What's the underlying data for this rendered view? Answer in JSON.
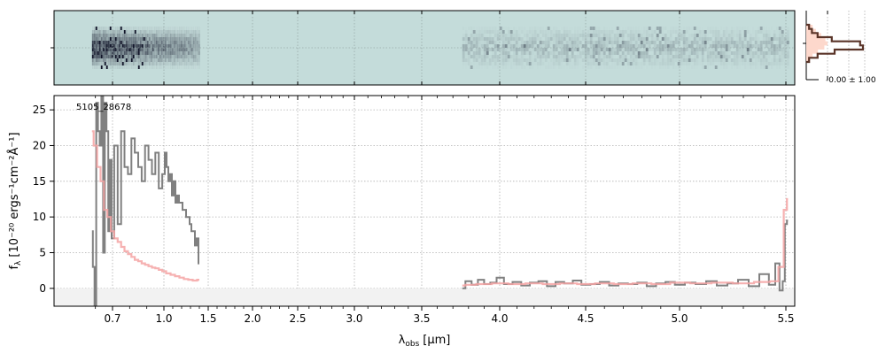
{
  "object_label": "5105_28678",
  "profile_label": "-0.00 ± 1.00",
  "colors": {
    "data": "#808080",
    "model": "#f4a3a3",
    "model_dark": "#a85050",
    "spec2d_bg": "#c4dcda",
    "profile_fill": "#fdd8cc",
    "profile_line": "#5a3428"
  },
  "chart_data": [
    {
      "type": "line",
      "panel": "spectrum-1d",
      "xlabel_symbol": "λ",
      "xlabel_sub": "obs",
      "xlabel_unit": "[μm]",
      "ylabel_text": "f",
      "ylabel_sub": "λ",
      "ylabel_unit": "[10⁻²⁰ ergs⁻¹cm⁻²Å⁻¹]",
      "ylim": [
        -2.5,
        27
      ],
      "yticks": [
        0,
        5,
        10,
        15,
        20,
        25
      ],
      "xticks": [
        0.7,
        1.0,
        1.5,
        2.0,
        2.5,
        3.0,
        3.5,
        4.0,
        4.5,
        5.0,
        5.5
      ],
      "x_tick_labels": [
        "0.7",
        "1.0",
        "1.5",
        "2.0",
        "2.5",
        "3.0",
        "3.5",
        "4.0",
        "4.5",
        "5.0",
        "5.5"
      ],
      "grid": true,
      "series": [
        {
          "role": "data",
          "x": [
            0.58,
            0.59,
            0.6,
            0.61,
            0.62,
            0.63,
            0.64,
            0.65,
            0.66,
            0.67,
            0.68,
            0.69,
            0.7,
            0.72,
            0.74,
            0.76,
            0.78,
            0.8,
            0.82,
            0.84,
            0.86,
            0.88,
            0.9,
            0.92,
            0.94,
            0.96,
            0.98,
            1.0,
            1.02,
            1.04,
            1.06,
            1.08,
            1.1,
            1.12,
            1.14,
            1.16,
            1.18,
            1.2,
            1.22,
            1.24,
            1.26,
            1.28,
            1.3,
            1.32,
            1.34,
            1.36,
            1.38,
            1.4
          ],
          "y": [
            8,
            3,
            -2.5,
            26,
            22,
            20,
            27,
            5,
            26,
            22,
            8,
            18,
            7,
            20,
            9,
            22,
            17,
            16,
            21,
            19,
            17,
            15,
            20,
            18,
            16,
            19,
            14,
            16,
            19,
            17,
            15,
            16,
            13,
            15,
            12,
            13,
            12,
            12,
            11,
            11,
            10,
            10,
            9,
            8,
            8,
            6,
            7,
            3.5
          ]
        },
        {
          "role": "data",
          "x": [
            3.76,
            3.8,
            3.84,
            3.88,
            3.92,
            3.96,
            4.0,
            4.05,
            4.1,
            4.15,
            4.2,
            4.25,
            4.3,
            4.35,
            4.4,
            4.45,
            4.5,
            4.55,
            4.6,
            4.65,
            4.7,
            4.75,
            4.8,
            4.85,
            4.9,
            4.95,
            5.0,
            5.05,
            5.1,
            5.15,
            5.2,
            5.25,
            5.3,
            5.35,
            5.4,
            5.44,
            5.46,
            5.48,
            5.49,
            5.5,
            5.51
          ],
          "y": [
            0,
            1,
            0.5,
            1.2,
            0.6,
            0.8,
            1.5,
            0.6,
            0.9,
            0.4,
            0.8,
            1.0,
            0.3,
            0.9,
            0.7,
            1.1,
            0.5,
            0.6,
            0.9,
            0.4,
            0.7,
            0.6,
            0.8,
            0.3,
            0.7,
            0.9,
            0.5,
            0.8,
            0.6,
            1.0,
            0.4,
            0.7,
            1.2,
            0.3,
            2.0,
            0.5,
            3.5,
            -0.3,
            1.0,
            9.0,
            9.5
          ]
        },
        {
          "role": "model",
          "x": [
            0.58,
            0.6,
            0.62,
            0.64,
            0.66,
            0.68,
            0.7,
            0.72,
            0.74,
            0.76,
            0.78,
            0.8,
            0.82,
            0.84,
            0.86,
            0.88,
            0.9,
            0.92,
            0.94,
            0.96,
            0.98,
            1.0,
            1.05,
            1.1,
            1.15,
            1.2,
            1.25,
            1.3,
            1.35,
            1.4
          ],
          "y": [
            22,
            20,
            17,
            15,
            11,
            10,
            8,
            7,
            6.5,
            5.8,
            5.2,
            4.8,
            4.4,
            4.0,
            3.8,
            3.5,
            3.3,
            3.1,
            2.9,
            2.8,
            2.6,
            2.4,
            2.1,
            1.9,
            1.7,
            1.5,
            1.3,
            1.2,
            1.1,
            1.2
          ]
        },
        {
          "role": "model",
          "x": [
            3.76,
            3.8,
            3.9,
            4.0,
            4.1,
            4.2,
            4.3,
            4.4,
            4.5,
            4.6,
            4.7,
            4.8,
            4.9,
            5.0,
            5.1,
            5.2,
            5.3,
            5.4,
            5.45,
            5.48,
            5.5,
            5.51
          ],
          "y": [
            0.4,
            0.5,
            0.6,
            0.7,
            0.6,
            0.7,
            0.6,
            0.7,
            0.6,
            0.7,
            0.6,
            0.7,
            0.6,
            0.8,
            0.7,
            0.8,
            0.7,
            0.9,
            1.0,
            3.0,
            11.0,
            12.5
          ]
        }
      ]
    },
    {
      "type": "heatmap",
      "panel": "spectrum-2d",
      "segments": [
        {
          "x_start": 0.58,
          "x_end": 1.4,
          "intensity": "high"
        },
        {
          "x_start": 3.76,
          "x_end": 5.51,
          "intensity": "low"
        }
      ]
    },
    {
      "type": "line",
      "panel": "profile",
      "annotation": "-0.00 ± 1.00",
      "profile_y": [
        0.05,
        0.1,
        0.2,
        0.45,
        0.95,
        1.0,
        0.5,
        0.2,
        0.05
      ],
      "model_y": [
        0.3,
        0.45,
        0.7,
        0.9,
        1.0,
        0.85,
        0.55,
        0.3,
        0.15
      ]
    }
  ]
}
